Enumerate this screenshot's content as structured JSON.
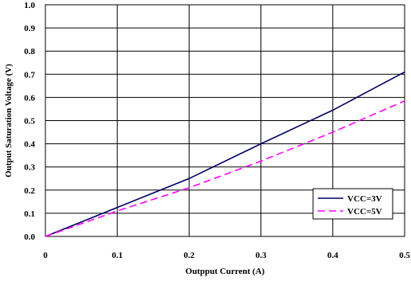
{
  "chart_data": {
    "type": "line",
    "title": "",
    "xlabel": "Outpput Current (A)",
    "ylabel": "Output Saturation Voltage (V)",
    "xlim": [
      0,
      0.5
    ],
    "ylim": [
      0,
      1.0
    ],
    "grid": true,
    "legend_position": "bottom-right",
    "x_ticks": [
      0,
      0.1,
      0.2,
      0.3,
      0.4,
      0.5
    ],
    "x_tick_labels": [
      "0",
      "0.1",
      "0.2",
      "0.3",
      "0.4",
      "0.5"
    ],
    "y_ticks": [
      0.0,
      0.1,
      0.2,
      0.3,
      0.4,
      0.5,
      0.6,
      0.7,
      0.8,
      0.9,
      1.0
    ],
    "y_tick_labels": [
      "0.0",
      "0.1",
      "0.2",
      "0.3",
      "0.4",
      "0.5",
      "0.6",
      "0.7",
      "0.8",
      "0.9",
      "1.0"
    ],
    "series": [
      {
        "name": "VCC=3V",
        "color": "#000066",
        "dash": "solid",
        "x": [
          0,
          0.1,
          0.2,
          0.3,
          0.4,
          0.5
        ],
        "values": [
          0,
          0.125,
          0.25,
          0.4,
          0.545,
          0.71
        ]
      },
      {
        "name": "VCC=5V",
        "color": "#ff00ff",
        "dash": "dashed",
        "x": [
          0,
          0.1,
          0.2,
          0.3,
          0.4,
          0.5
        ],
        "values": [
          0,
          0.11,
          0.21,
          0.325,
          0.45,
          0.585
        ]
      }
    ]
  }
}
